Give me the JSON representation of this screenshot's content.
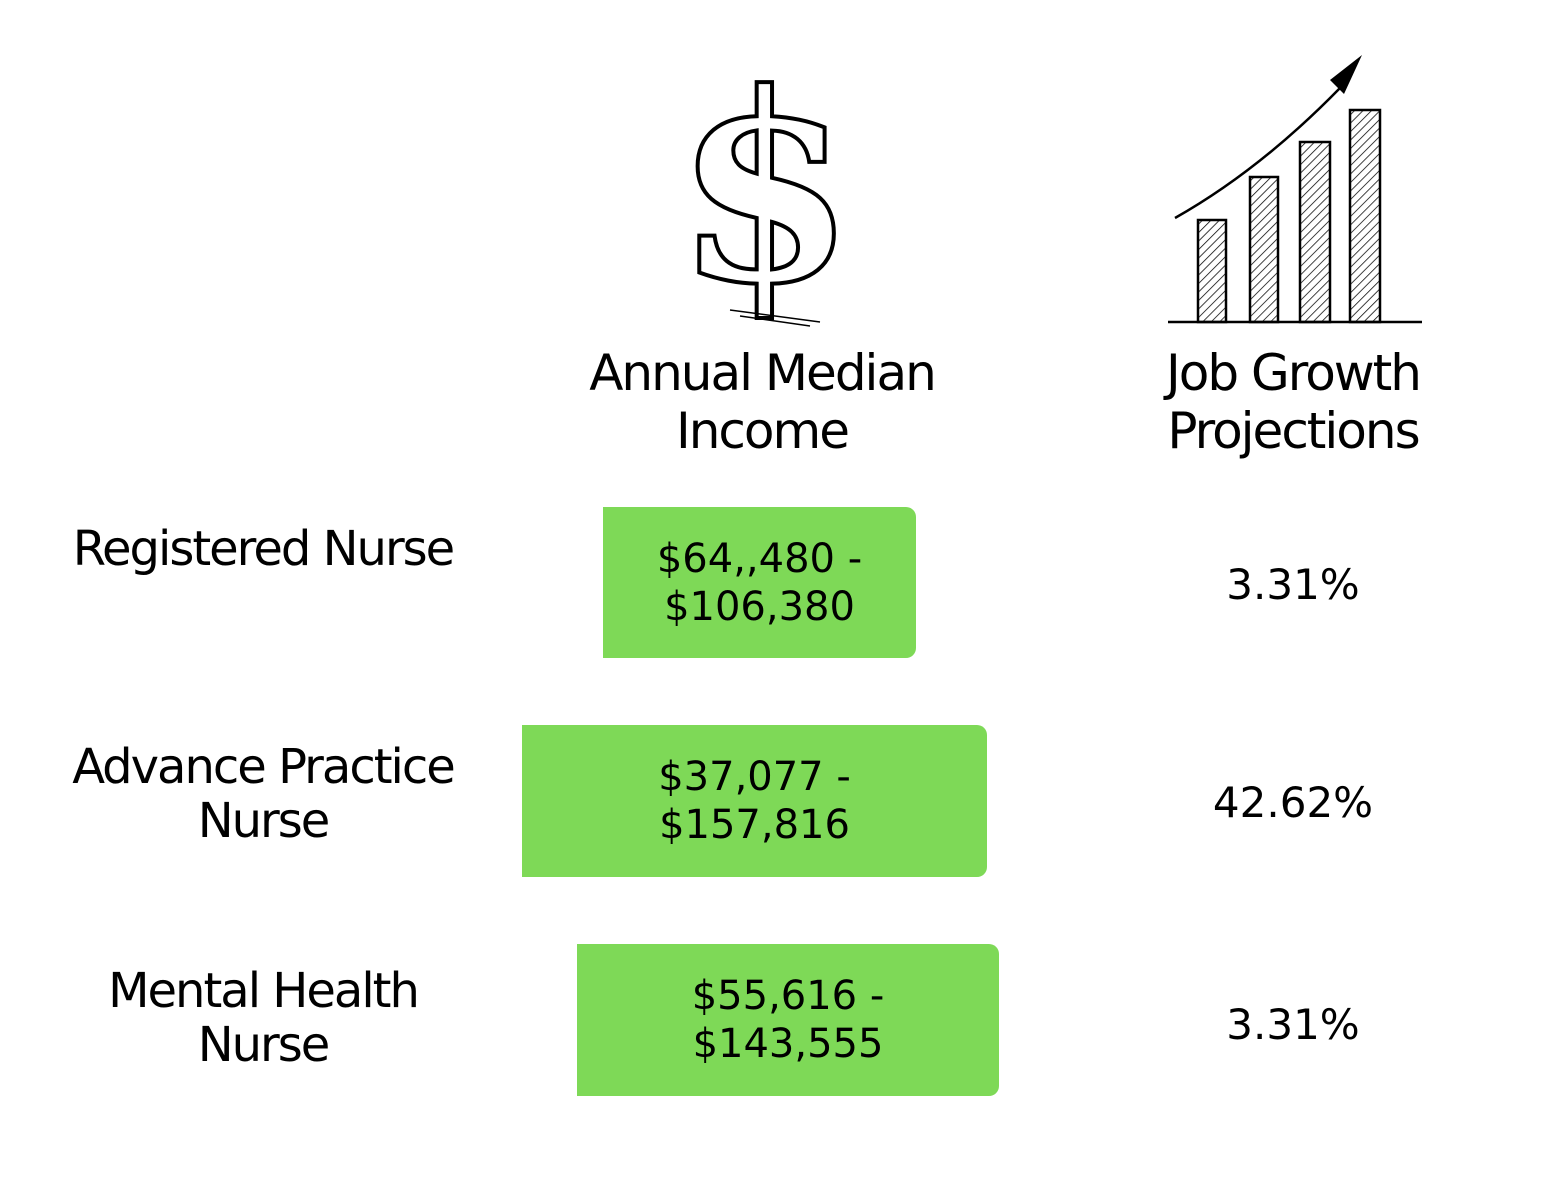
{
  "header": {
    "income": "Annual Median Income",
    "growth": "Job Growth Projections"
  },
  "table": {
    "rows": [
      {
        "role": "Registered Nurse",
        "income": "$64,,480 - $106,380",
        "growth": "3.31%"
      },
      {
        "role": "Advance Practice Nurse",
        "income": "$37,077 - $157,816",
        "growth": "42.62%"
      },
      {
        "role": "Mental Health Nurse",
        "income": "$55,616 - $143,555",
        "growth": "3.31%"
      }
    ]
  }
}
